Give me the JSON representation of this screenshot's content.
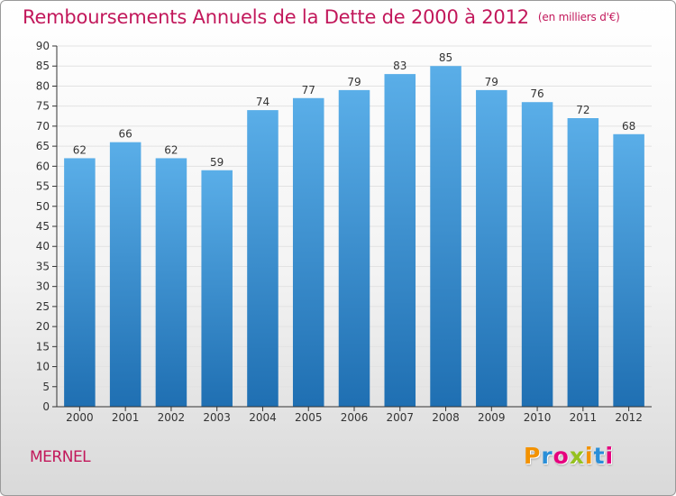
{
  "header": {
    "title": "Remboursements Annuels de la Dette de 2000 à 2012",
    "unit": "(en milliers d'€)"
  },
  "footer": {
    "town": "MERNEL",
    "brand": "Proxiti",
    "brand_letter_colors": [
      "#f39200",
      "#2a8fd8",
      "#e6007e",
      "#95c11f",
      "#f39200",
      "#2a8fd8",
      "#e6007e"
    ]
  },
  "colors": {
    "title": "#c2185b",
    "bar_top": "#5aaee8",
    "bar_bottom": "#1f6fb2",
    "grid": "#e2e2e2",
    "axis": "#333333",
    "label": "#333333"
  },
  "chart_data": {
    "type": "bar",
    "title": "Remboursements Annuels de la Dette de 2000 à 2012",
    "xlabel": "",
    "ylabel": "",
    "categories": [
      "2000",
      "2001",
      "2002",
      "2003",
      "2004",
      "2005",
      "2006",
      "2007",
      "2008",
      "2009",
      "2010",
      "2011",
      "2012"
    ],
    "values": [
      62,
      66,
      62,
      59,
      74,
      77,
      79,
      83,
      85,
      79,
      76,
      72,
      68
    ],
    "ylim": [
      0,
      90
    ],
    "ytick_step": 5,
    "grid": true,
    "data_labels": true
  }
}
